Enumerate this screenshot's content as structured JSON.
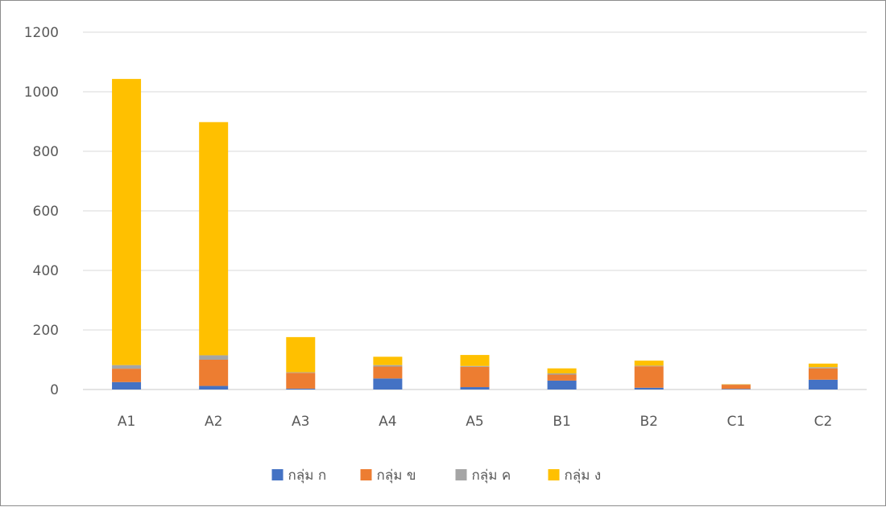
{
  "chart_data": {
    "type": "bar",
    "stacked": true,
    "title": "",
    "xlabel": "",
    "ylabel": "",
    "categories": [
      "A1",
      "A2",
      "A3",
      "A4",
      "A5",
      "B1",
      "B2",
      "C1",
      "C2"
    ],
    "series": [
      {
        "name": "กลุ่ม ก",
        "color": "#4472C4",
        "values": [
          25,
          12,
          3,
          37,
          8,
          30,
          6,
          2,
          33
        ]
      },
      {
        "name": "กลุ่ม ข",
        "color": "#ED7D31",
        "values": [
          45,
          88,
          53,
          40,
          68,
          20,
          72,
          14,
          38
        ]
      },
      {
        "name": "กลุ่ม ค",
        "color": "#A5A5A5",
        "values": [
          12,
          15,
          2,
          5,
          3,
          4,
          2,
          1,
          4
        ]
      },
      {
        "name": "กลุ่ม ง",
        "color": "#FFC000",
        "values": [
          961,
          783,
          118,
          28,
          37,
          17,
          17,
          1,
          12
        ]
      }
    ],
    "ylim": [
      0,
      1200
    ],
    "yticks": [
      "0",
      "200",
      "400",
      "600",
      "800",
      "1000",
      "1200"
    ],
    "grid": true,
    "legend_position": "bottom"
  }
}
